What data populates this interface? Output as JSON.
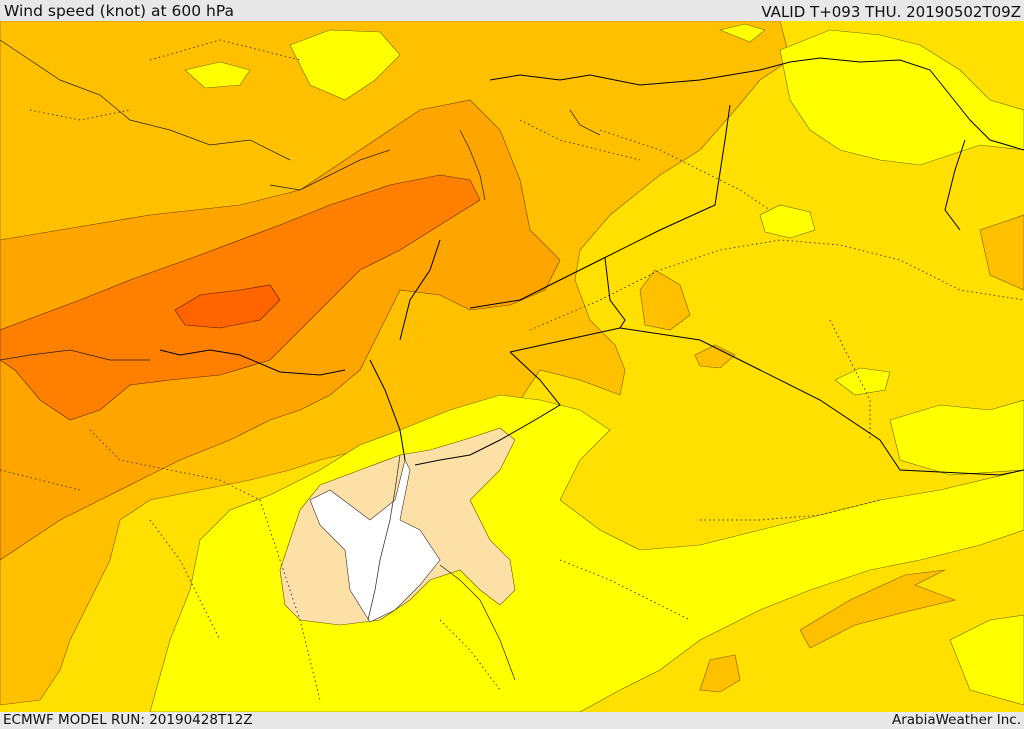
{
  "header": {
    "title": "Wind speed (knot) at 600 hPa",
    "valid": "VALID T+093 THU. 20190502T09Z"
  },
  "footer": {
    "model_run": "ECMWF MODEL RUN: 20190428T12Z",
    "credit": "ArabiaWeather Inc."
  },
  "map": {
    "variable": "wind speed",
    "level": "600 hPa",
    "colors": {
      "lightest_band": "#ffffff",
      "pale_band": "#fde0a6",
      "yellow_band": "#ffff00",
      "gold_band": "#ffe000",
      "amber_band": "#ffc000",
      "orange_band": "#ffa500",
      "dark_orange_band": "#ff7f00",
      "red_orange_band": "#ff6400",
      "border_line": "#000000"
    }
  }
}
